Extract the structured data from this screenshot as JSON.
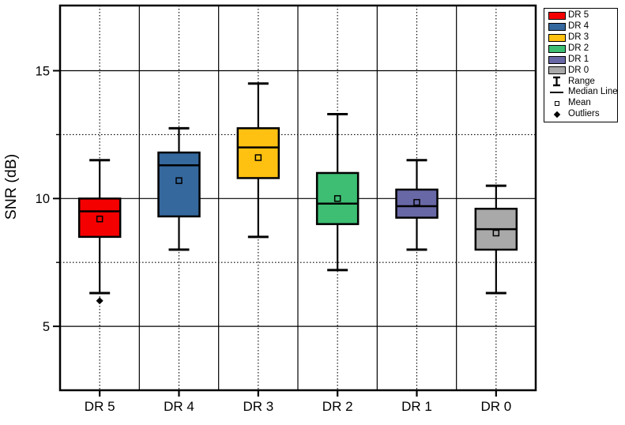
{
  "chart_data": {
    "type": "box",
    "title": "",
    "xlabel": "",
    "ylabel": "SNR (dB)",
    "ylim": [
      2.5,
      17.55
    ],
    "yticks": [
      5,
      10,
      15
    ],
    "ytick_labels": [
      "5",
      "10",
      "15"
    ],
    "yminor_ticks": [
      7.5,
      12.5
    ],
    "grid": {
      "major_horizontal": "solid",
      "minor_horizontal": "dotted",
      "category_boundaries": "solid",
      "category_centers": "dotted"
    },
    "legend_position": "top-right",
    "categories": [
      "DR 5",
      "DR 4",
      "DR 3",
      "DR 2",
      "DR 1",
      "DR 0"
    ],
    "series": [
      {
        "name": "DR 5",
        "color": "#F40000",
        "whisker_low": 6.3,
        "q1": 8.5,
        "median": 9.5,
        "q3": 10.0,
        "whisker_high": 11.5,
        "mean": 9.2,
        "outliers": [
          6.0
        ]
      },
      {
        "name": "DR 4",
        "color": "#35689D",
        "whisker_low": 8.0,
        "q1": 9.3,
        "median": 11.3,
        "q3": 11.8,
        "whisker_high": 12.75,
        "mean": 10.7,
        "outliers": []
      },
      {
        "name": "DR 3",
        "color": "#FEC111",
        "whisker_low": 8.5,
        "q1": 10.8,
        "median": 12.0,
        "q3": 12.75,
        "whisker_high": 14.5,
        "mean": 11.6,
        "outliers": []
      },
      {
        "name": "DR 2",
        "color": "#3DBE73",
        "whisker_low": 7.2,
        "q1": 9.0,
        "median": 9.8,
        "q3": 11.0,
        "whisker_high": 13.3,
        "mean": 10.0,
        "outliers": []
      },
      {
        "name": "DR 1",
        "color": "#6868A6",
        "whisker_low": 8.0,
        "q1": 9.25,
        "median": 9.7,
        "q3": 10.35,
        "whisker_high": 11.5,
        "mean": 9.85,
        "outliers": []
      },
      {
        "name": "DR 0",
        "color": "#A9A9A9",
        "whisker_low": 6.3,
        "q1": 8.0,
        "median": 8.8,
        "q3": 9.6,
        "whisker_high": 10.5,
        "mean": 8.65,
        "outliers": []
      }
    ]
  },
  "legend": {
    "items": [
      {
        "label": "DR 5",
        "type": "swatch",
        "color": "#F40000"
      },
      {
        "label": "DR 4",
        "type": "swatch",
        "color": "#35689D"
      },
      {
        "label": "DR 3",
        "type": "swatch",
        "color": "#FEC111"
      },
      {
        "label": "DR 2",
        "type": "swatch",
        "color": "#3DBE73"
      },
      {
        "label": "DR 1",
        "type": "swatch",
        "color": "#6868A6"
      },
      {
        "label": "DR 0",
        "type": "swatch",
        "color": "#A9A9A9"
      },
      {
        "label": "Range",
        "type": "range"
      },
      {
        "label": "Median Line",
        "type": "median"
      },
      {
        "label": "Mean",
        "type": "mean"
      },
      {
        "label": "Outliers",
        "type": "outliers"
      }
    ]
  }
}
